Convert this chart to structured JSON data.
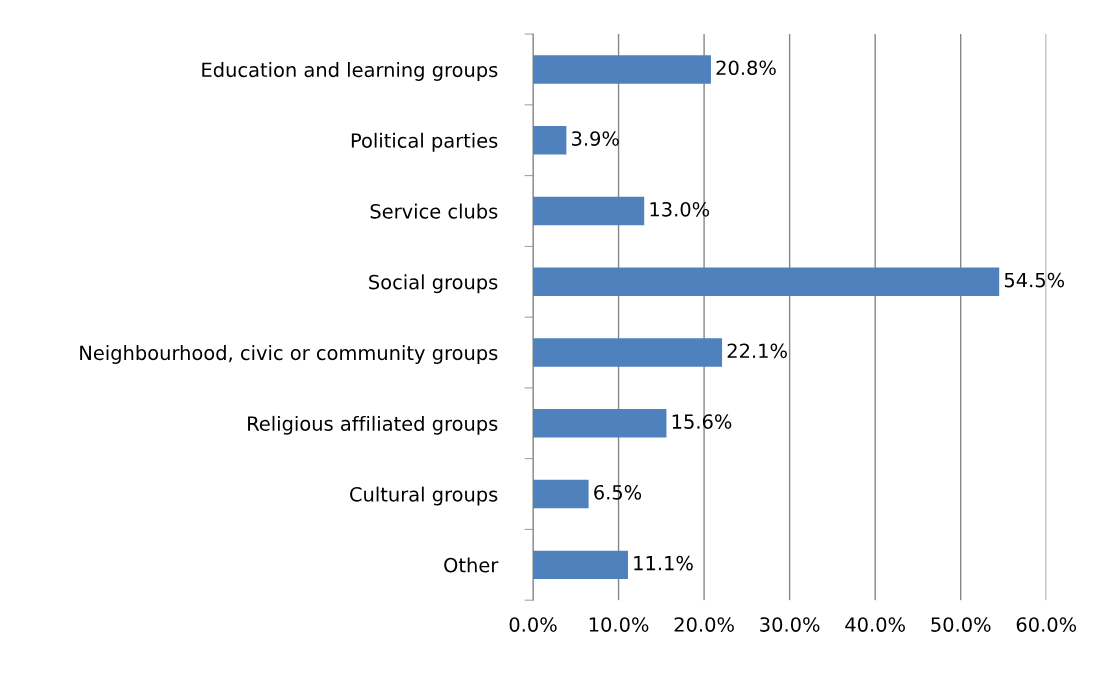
{
  "chart_data": {
    "type": "bar",
    "orientation": "horizontal",
    "categories": [
      "Education and learning groups",
      "Political parties",
      "Service clubs",
      "Social groups",
      "Neighbourhood, civic or community groups",
      "Religious affiliated groups",
      "Cultural groups",
      "Other"
    ],
    "values": [
      20.8,
      3.9,
      13.0,
      54.5,
      22.1,
      15.6,
      6.5,
      11.1
    ],
    "value_labels": [
      "20.8%",
      "3.9%",
      "13.0%",
      "54.5%",
      "22.1%",
      "15.6%",
      "6.5%",
      "11.1%"
    ],
    "color": "#4f81bd",
    "xlim": [
      0,
      60
    ],
    "xticks": [
      {
        "value": 0,
        "label": "0.0%"
      },
      {
        "value": 10,
        "label": "10.0%"
      },
      {
        "value": 20,
        "label": "20.0%"
      },
      {
        "value": 30,
        "label": "30.0%"
      },
      {
        "value": 40,
        "label": "40.0%"
      },
      {
        "value": 50,
        "label": "50.0%"
      },
      {
        "value": 60,
        "label": "60.0%"
      }
    ],
    "grid": "x"
  }
}
